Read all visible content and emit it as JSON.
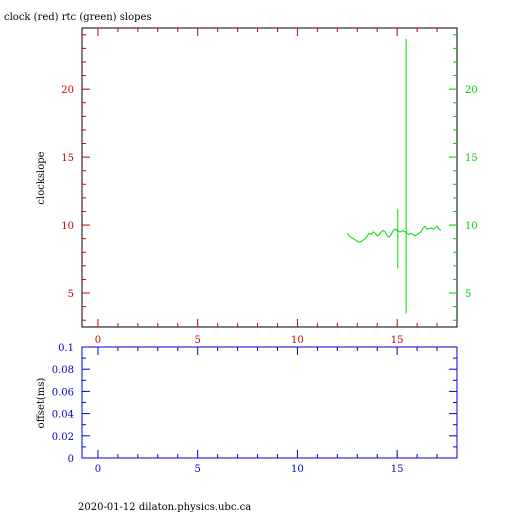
{
  "chart_data": [
    {
      "type": "line",
      "title": "clock (red) rtc (green) slopes",
      "ylabel": "clockslope",
      "xlim": [
        -0.8,
        18.0
      ],
      "ylim": [
        2.5,
        24.5
      ],
      "left_ticks": [
        5,
        10,
        15,
        20
      ],
      "right_ticks": [
        5,
        10,
        15,
        20
      ],
      "x_ticks": [
        0,
        5,
        10,
        15
      ],
      "colors": {
        "left_axis": "#cc0000",
        "right_axis": "#00cc00",
        "x_axis": "#cc0000",
        "frame": "#000000"
      },
      "series": [
        {
          "color": "#00dd00",
          "points": [
            [
              12.5,
              9.4
            ],
            [
              12.6,
              9.2
            ],
            [
              12.7,
              9.1
            ],
            [
              12.8,
              9.0
            ],
            [
              12.9,
              8.9
            ],
            [
              13.0,
              8.8
            ],
            [
              13.1,
              8.75
            ],
            [
              13.2,
              8.8
            ],
            [
              13.3,
              8.9
            ],
            [
              13.4,
              9.0
            ],
            [
              13.5,
              9.2
            ],
            [
              13.6,
              9.4
            ],
            [
              13.7,
              9.3
            ],
            [
              13.8,
              9.5
            ],
            [
              13.9,
              9.4
            ],
            [
              14.0,
              9.2
            ],
            [
              14.1,
              9.3
            ],
            [
              14.2,
              9.5
            ],
            [
              14.3,
              9.6
            ],
            [
              14.4,
              9.5
            ],
            [
              14.5,
              9.2
            ],
            [
              14.6,
              9.1
            ],
            [
              14.7,
              9.3
            ],
            [
              14.8,
              9.6
            ],
            [
              14.9,
              9.7
            ],
            [
              15.0,
              9.6
            ],
            [
              15.1,
              9.5
            ],
            [
              15.2,
              9.5
            ],
            [
              15.3,
              9.6
            ],
            [
              15.4,
              9.5
            ],
            [
              15.5,
              9.4
            ],
            [
              15.6,
              9.3
            ],
            [
              15.7,
              9.4
            ],
            [
              15.8,
              9.3
            ],
            [
              15.9,
              9.2
            ],
            [
              16.0,
              9.3
            ],
            [
              16.1,
              9.4
            ],
            [
              16.2,
              9.5
            ],
            [
              16.3,
              9.8
            ],
            [
              16.4,
              9.9
            ],
            [
              16.5,
              9.7
            ],
            [
              16.6,
              9.75
            ],
            [
              16.7,
              9.8
            ],
            [
              16.8,
              9.7
            ],
            [
              16.9,
              9.8
            ],
            [
              17.0,
              9.9
            ],
            [
              17.1,
              9.7
            ],
            [
              17.2,
              9.6
            ]
          ],
          "spikes": [
            {
              "x": 15.03,
              "y0": 6.8,
              "y1": 11.2
            },
            {
              "x": 15.45,
              "y0": 3.5,
              "y1": 23.7
            }
          ]
        }
      ]
    },
    {
      "type": "line",
      "ylabel": "offset(ms)",
      "xlim": [
        -0.8,
        18.0
      ],
      "ylim": [
        0,
        0.1
      ],
      "y_ticks": [
        "0",
        "0.02",
        "0.04",
        "0.06",
        "0.08",
        "0.1"
      ],
      "x_ticks": [
        0,
        5,
        10,
        15
      ],
      "colors": {
        "axis": "#0000cc"
      },
      "series": []
    }
  ],
  "footer": "2020-01-12 dilaton.physics.ubc.ca"
}
